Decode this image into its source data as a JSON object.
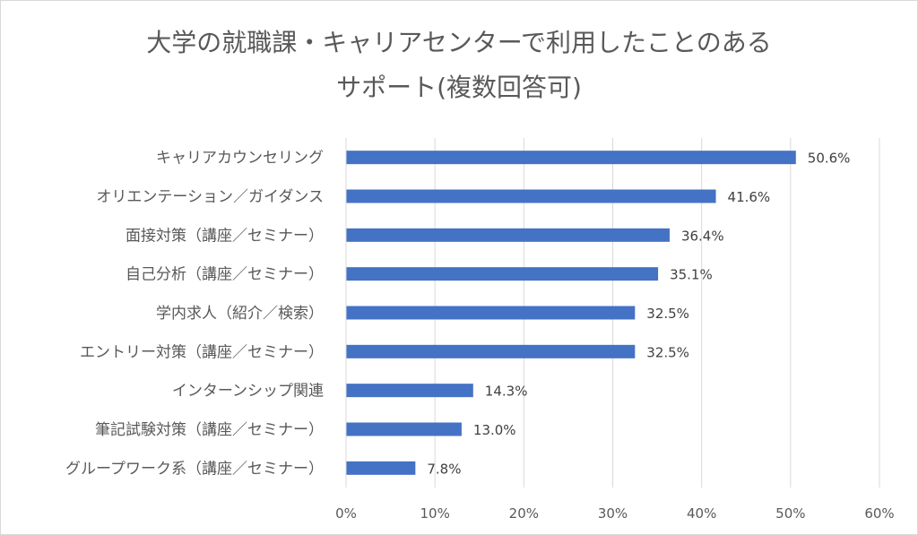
{
  "chart_data": {
    "type": "bar",
    "orientation": "horizontal",
    "title": [
      "大学の就職課・キャリアセンターで利用したことのある",
      "サポート(複数回答可)"
    ],
    "categories": [
      "キャリアカウンセリング",
      "オリエンテーション／ガイダンス",
      "面接対策（講座／セミナー）",
      "自己分析（講座／セミナー）",
      "学内求人（紹介／検索）",
      "エントリー対策（講座／セミナー）",
      "インターンシップ関連",
      "筆記試験対策（講座／セミナー）",
      "グループワーク系（講座／セミナー）"
    ],
    "values": [
      50.6,
      41.6,
      36.4,
      35.1,
      32.5,
      32.5,
      14.3,
      13.0,
      7.8
    ],
    "data_labels": [
      "50.6%",
      "41.6%",
      "36.4%",
      "35.1%",
      "32.5%",
      "32.5%",
      "14.3%",
      "13.0%",
      "7.8%"
    ],
    "xlim": [
      0,
      60
    ],
    "xticks": [
      0,
      10,
      20,
      30,
      40,
      50,
      60
    ],
    "xtick_labels": [
      "0%",
      "10%",
      "20%",
      "30%",
      "40%",
      "50%",
      "60%"
    ],
    "grid": true,
    "bar_color": "#4472C4",
    "grid_color": "#d9d9d9",
    "text_color": "#595959"
  }
}
